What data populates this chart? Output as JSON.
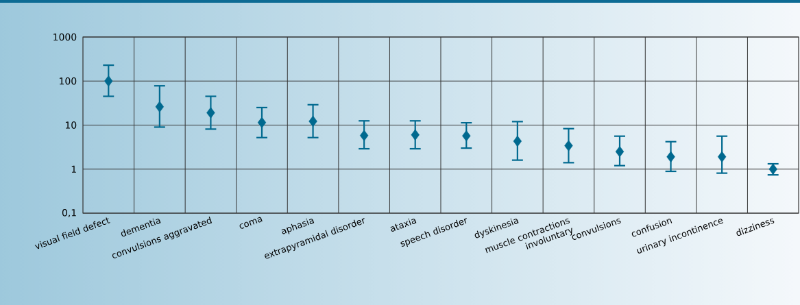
{
  "chart_data": {
    "type": "scatter",
    "categories": [
      "visual field defect",
      "dementia",
      "convulsions aggravated",
      "coma",
      "aphasia",
      "extrapyramidal disorder",
      "ataxia",
      "speech disorder",
      "dyskinesia",
      "muscle contractions involuntary",
      "convulsions",
      "confusion",
      "urinary incontinence",
      "dizziness"
    ],
    "values": [
      100,
      26,
      19,
      11.4,
      12.2,
      5.8,
      6.0,
      5.7,
      4.3,
      3.4,
      2.5,
      1.9,
      1.9,
      1.0
    ],
    "errors": [
      [
        45,
        229
      ],
      [
        9,
        78
      ],
      [
        8.1,
        45
      ],
      [
        5.2,
        25
      ],
      [
        5.2,
        29
      ],
      [
        2.9,
        12.5
      ],
      [
        2.9,
        12.5
      ],
      [
        3.0,
        11.3
      ],
      [
        1.6,
        12
      ],
      [
        1.4,
        8.3
      ],
      [
        1.2,
        5.6
      ],
      [
        0.89,
        4.2
      ],
      [
        0.81,
        5.6
      ],
      [
        0.74,
        1.32
      ]
    ],
    "color": "#00698f",
    "marker": "diamond",
    "log": "y",
    "ylim": [
      0.1,
      1000
    ],
    "yticks": [
      {
        "value": 0.1,
        "label": "0,1"
      },
      1,
      10,
      100,
      1000
    ],
    "grid": true
  }
}
